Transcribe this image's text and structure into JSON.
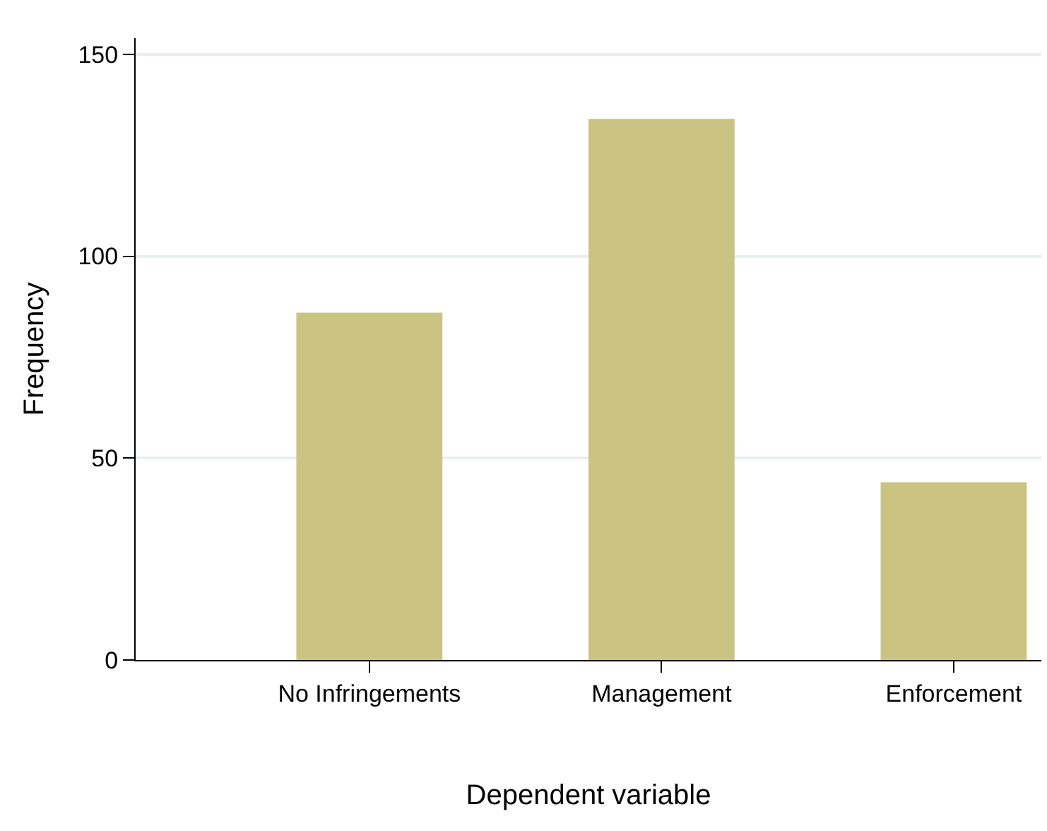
{
  "chart_data": {
    "type": "bar",
    "xlabel": "Dependent variable",
    "ylabel": "Frequency",
    "categories": [
      "No Infringements",
      "Management",
      "Enforcement"
    ],
    "values": [
      86,
      134,
      44
    ],
    "color": "#cbc382",
    "ylim": [
      0,
      154
    ],
    "yticks": [
      0,
      50,
      100,
      150
    ],
    "grid": "y",
    "legend": false
  }
}
